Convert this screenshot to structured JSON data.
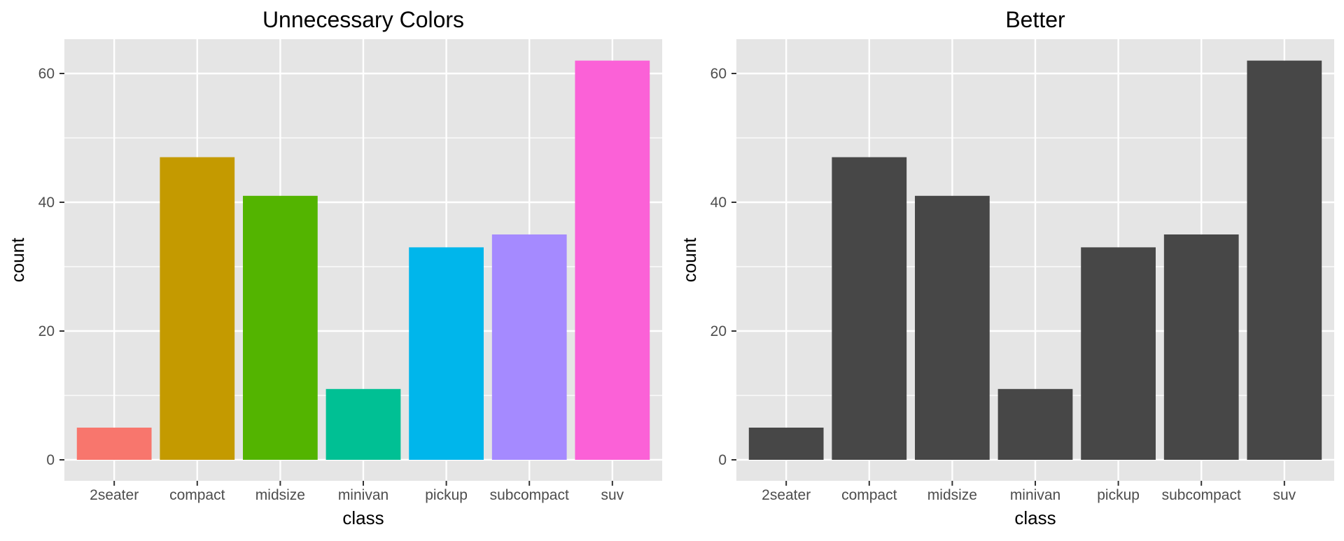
{
  "chart_data": [
    {
      "type": "bar",
      "title": "Unnecessary Colors",
      "xlabel": "class",
      "ylabel": "count",
      "categories": [
        "2seater",
        "compact",
        "midsize",
        "minivan",
        "pickup",
        "subcompact",
        "suv"
      ],
      "values": [
        5,
        47,
        41,
        11,
        33,
        35,
        62
      ],
      "bar_colors": [
        "#F8766D",
        "#C49A00",
        "#53B400",
        "#00C094",
        "#00B6EB",
        "#A58AFF",
        "#FB61D7"
      ],
      "yticks": [
        0,
        20,
        40,
        60
      ],
      "ylim": [
        0,
        65
      ],
      "grid": true,
      "legend": "none",
      "panel_background": "#E5E5E5",
      "grid_color": "#FFFFFF"
    },
    {
      "type": "bar",
      "title": "Better",
      "xlabel": "class",
      "ylabel": "count",
      "categories": [
        "2seater",
        "compact",
        "midsize",
        "minivan",
        "pickup",
        "subcompact",
        "suv"
      ],
      "values": [
        5,
        47,
        41,
        11,
        33,
        35,
        62
      ],
      "bar_colors": [
        "#474747",
        "#474747",
        "#474747",
        "#474747",
        "#474747",
        "#474747",
        "#474747"
      ],
      "yticks": [
        0,
        20,
        40,
        60
      ],
      "ylim": [
        0,
        65
      ],
      "grid": true,
      "legend": "none",
      "panel_background": "#E5E5E5",
      "grid_color": "#FFFFFF"
    }
  ]
}
